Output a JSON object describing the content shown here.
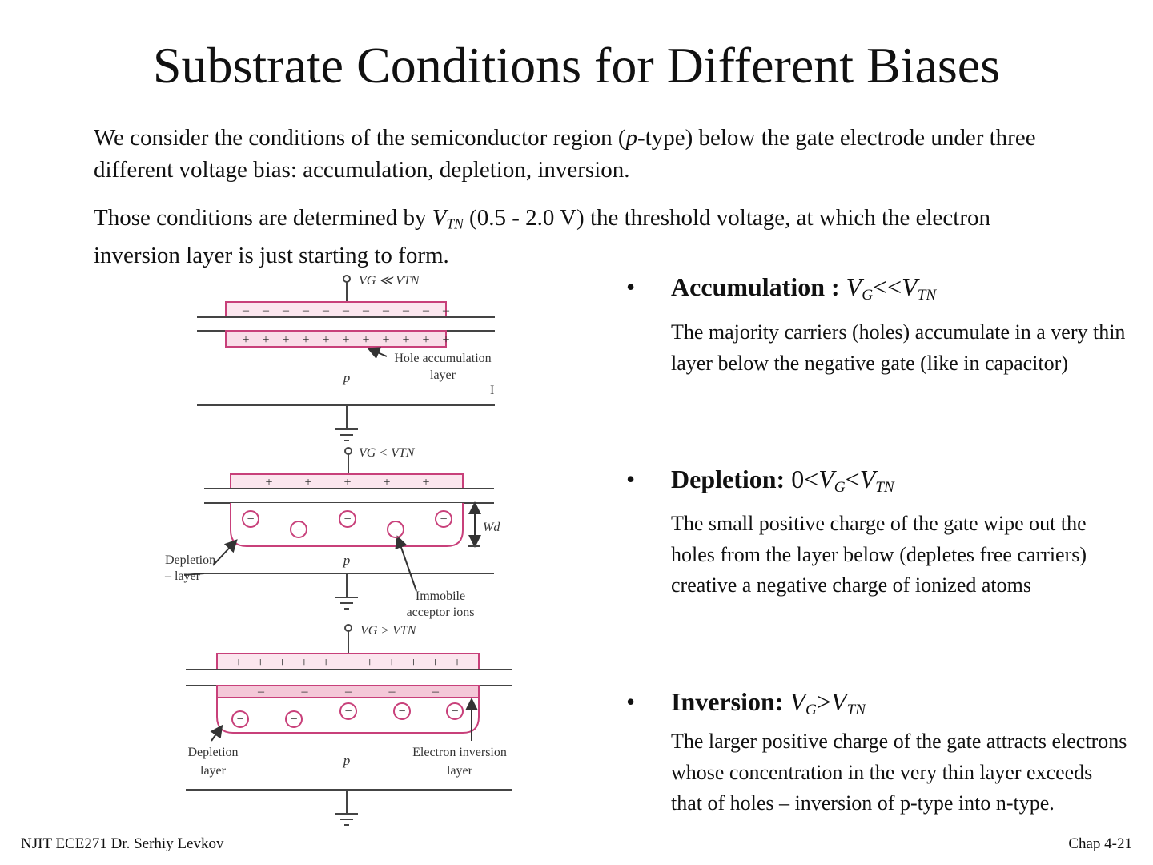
{
  "title": "Substrate Conditions for Different Biases",
  "intro": {
    "p1_a": "We consider the conditions of  the semiconductor region (",
    "p1_italic": "p",
    "p1_b": "-type) below the gate electrode under three different voltage bias:  accumulation, depletion, inversion.",
    "p2_a": "Those conditions are determined by ",
    "p2_v": "V",
    "p2_sub": "TN",
    "p2_b": "  (0.5 - 2.0 V)  the threshold voltage, at which the electron inversion  layer is just starting to form."
  },
  "bullets": [
    {
      "label": "Accumulation : ",
      "cond_pre": "",
      "v1": "V",
      "s1": "G",
      "op": "<<",
      "v2": "V",
      "s2": "TN",
      "desc": "The majority carriers (holes) accumulate in a very thin layer below the negative gate (like in capacitor)"
    },
    {
      "label": "Depletion:  ",
      "cond_pre": "0<",
      "v1": "V",
      "s1": "G",
      "op": "<",
      "v2": "V",
      "s2": "TN",
      "desc": "The small positive charge of the gate wipe out the holes from the layer below (depletes free carriers) creative a negative charge of ionized atoms"
    },
    {
      "label": "Inversion:  ",
      "cond_pre": "",
      "v1": "V",
      "s1": "G",
      "op": ">",
      "v2": "V",
      "s2": "TN",
      "desc": "The larger positive charge of the gate attracts electrons whose concentration in the very thin layer exceeds that of holes – inversion of p-type into n-type."
    }
  ],
  "bullet_symbol": "•",
  "diagram": {
    "accumulation": {
      "gate_label": "VG ≪ VTN",
      "region": "p",
      "annotation_1": "Hole accumulation",
      "annotation_2": "layer",
      "edge_mark": "I"
    },
    "depletion": {
      "gate_label": "VG < VTN",
      "region": "p",
      "width_label": "Wd",
      "left_1": "Depletion",
      "left_2": "– layer",
      "right_1": "Immobile",
      "right_2": "acceptor ions"
    },
    "inversion": {
      "gate_label": "VG > VTN",
      "region": "p",
      "left_1": "Depletion",
      "left_2": "layer",
      "right_1": "Electron inversion",
      "right_2": "layer"
    },
    "colors": {
      "charge": "#c8407a",
      "layer_fill": "#f9dde8",
      "line": "#444444"
    }
  },
  "footer": {
    "left": "NJIT  ECE271 Dr. Serhiy Levkov",
    "right": "Chap 4-21"
  }
}
